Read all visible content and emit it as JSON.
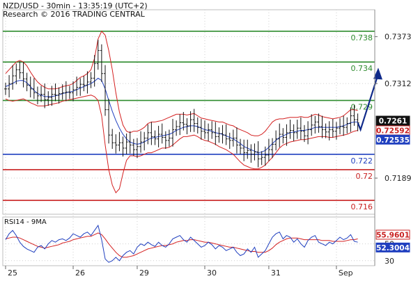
{
  "header": {
    "title": "NZD/USD - 30min - 13:35:19 (UTC+2)",
    "research": "Research © 2016 TRADING CENTRAL"
  },
  "chart_data": {
    "type": "line",
    "price_axis": {
      "ylim": [
        0.7142,
        0.7408
      ],
      "ticks": [
        {
          "value": 0.7373,
          "label": "0.7373"
        },
        {
          "value": 0.7312,
          "label": "0.7312"
        },
        {
          "value": 0.7189,
          "label": "0.7189"
        }
      ]
    },
    "x_axis": {
      "labels": [
        {
          "label": "25",
          "index": 0
        },
        {
          "label": "26",
          "index": 19
        },
        {
          "label": "29",
          "index": 37
        },
        {
          "label": "30",
          "index": 56
        },
        {
          "label": "31",
          "index": 74
        },
        {
          "label": "Sep",
          "index": 93
        }
      ],
      "count": 104
    },
    "levels": [
      {
        "value": 0.738,
        "label": "0.738",
        "color": "#2e8b2e"
      },
      {
        "value": 0.734,
        "label": "0.734",
        "color": "#2e8b2e"
      },
      {
        "value": 0.729,
        "label": "0.729",
        "color": "#2e8b2e"
      },
      {
        "value": 0.722,
        "label": "0.722",
        "color": "#1f3fbf"
      },
      {
        "value": 0.72,
        "label": "0.72",
        "color": "#c82020"
      },
      {
        "value": 0.716,
        "label": "0.716",
        "color": "#c82020"
      }
    ],
    "price_badges": [
      {
        "value": 0.7261,
        "label": "0.7261",
        "bg": "#111111",
        "fg": "#ffffff"
      },
      {
        "value": 0.72592,
        "label": "0.72592",
        "bg": "#ffffff",
        "fg": "#c82020",
        "border": "#c82020"
      },
      {
        "value": 0.72535,
        "label": "0.72535",
        "bg": "#1f3fbf",
        "fg": "#ffffff"
      }
    ],
    "forecast_arrow": {
      "from_index": 100,
      "from": 0.7252,
      "to_index": 104,
      "to": 0.7329,
      "color": "#102a8a"
    },
    "close": [
      0.7305,
      0.7312,
      0.7322,
      0.733,
      0.7326,
      0.7318,
      0.731,
      0.7305,
      0.73,
      0.7296,
      0.7298,
      0.7291,
      0.7294,
      0.7298,
      0.7297,
      0.7299,
      0.73,
      0.7301,
      0.73,
      0.7304,
      0.7307,
      0.7311,
      0.731,
      0.7314,
      0.7319,
      0.7338,
      0.7355,
      0.7325,
      0.7278,
      0.7245,
      0.7235,
      0.7232,
      0.7235,
      0.7228,
      0.7236,
      0.7232,
      0.7226,
      0.723,
      0.7236,
      0.7241,
      0.7248,
      0.7243,
      0.724,
      0.7246,
      0.7242,
      0.7238,
      0.7241,
      0.7252,
      0.7256,
      0.7261,
      0.7259,
      0.7257,
      0.7265,
      0.726,
      0.7255,
      0.725,
      0.7248,
      0.7252,
      0.7248,
      0.7243,
      0.7247,
      0.7245,
      0.724,
      0.7238,
      0.7241,
      0.7232,
      0.7228,
      0.7222,
      0.7225,
      0.722,
      0.7223,
      0.7214,
      0.7216,
      0.7219,
      0.7226,
      0.7233,
      0.724,
      0.7246,
      0.7242,
      0.7248,
      0.7251,
      0.7248,
      0.7254,
      0.725,
      0.7244,
      0.7252,
      0.7258,
      0.7262,
      0.7256,
      0.7252,
      0.7249,
      0.7252,
      0.725,
      0.7254,
      0.7256,
      0.7255,
      0.726,
      0.727,
      0.7265,
      0.7261
    ],
    "bb_upper": [
      0.7325,
      0.733,
      0.7335,
      0.734,
      0.7342,
      0.734,
      0.7335,
      0.7327,
      0.732,
      0.7314,
      0.731,
      0.7307,
      0.7305,
      0.7305,
      0.7305,
      0.7306,
      0.7308,
      0.7309,
      0.731,
      0.7312,
      0.7316,
      0.732,
      0.7322,
      0.7325,
      0.733,
      0.7345,
      0.737,
      0.738,
      0.7375,
      0.7355,
      0.733,
      0.73,
      0.7275,
      0.7258,
      0.725,
      0.7248,
      0.725,
      0.725,
      0.7252,
      0.7255,
      0.726,
      0.7262,
      0.7262,
      0.7263,
      0.7264,
      0.7266,
      0.7268,
      0.727,
      0.7272,
      0.7272,
      0.7272,
      0.7271,
      0.7272,
      0.7273,
      0.727,
      0.7267,
      0.7266,
      0.7265,
      0.7264,
      0.7263,
      0.7262,
      0.7262,
      0.726,
      0.7258,
      0.7257,
      0.7254,
      0.7252,
      0.725,
      0.7248,
      0.7245,
      0.7244,
      0.7244,
      0.7246,
      0.725,
      0.7256,
      0.7262,
      0.7265,
      0.7266,
      0.7266,
      0.7267,
      0.7268,
      0.7268,
      0.7268,
      0.7269,
      0.7268,
      0.7268,
      0.727,
      0.7272,
      0.7271,
      0.7269,
      0.7268,
      0.7267,
      0.7266,
      0.7267,
      0.7268,
      0.727,
      0.7274,
      0.7278,
      0.7278,
      0.7277
    ],
    "bb_lower": [
      0.7292,
      0.729,
      0.7289,
      0.729,
      0.7291,
      0.7292,
      0.729,
      0.7287,
      0.7285,
      0.7283,
      0.7283,
      0.7283,
      0.7284,
      0.7285,
      0.7286,
      0.7287,
      0.7289,
      0.729,
      0.7291,
      0.7292,
      0.7293,
      0.7294,
      0.7295,
      0.7296,
      0.7297,
      0.7295,
      0.729,
      0.727,
      0.7232,
      0.72,
      0.718,
      0.717,
      0.7175,
      0.7195,
      0.7212,
      0.7218,
      0.7218,
      0.7217,
      0.7218,
      0.722,
      0.7222,
      0.7222,
      0.7224,
      0.7226,
      0.7228,
      0.7228,
      0.7229,
      0.7232,
      0.7236,
      0.724,
      0.7243,
      0.7243,
      0.7244,
      0.7245,
      0.7243,
      0.724,
      0.7238,
      0.7237,
      0.7235,
      0.7233,
      0.723,
      0.7228,
      0.7226,
      0.7223,
      0.722,
      0.7215,
      0.721,
      0.7206,
      0.7204,
      0.7202,
      0.7201,
      0.7201,
      0.7203,
      0.7206,
      0.7211,
      0.7216,
      0.7222,
      0.7228,
      0.7232,
      0.7234,
      0.7236,
      0.7237,
      0.7238,
      0.7239,
      0.7239,
      0.724,
      0.7241,
      0.7242,
      0.7243,
      0.7243,
      0.7243,
      0.7242,
      0.7242,
      0.7243,
      0.7244,
      0.7245,
      0.7246,
      0.7248,
      0.725,
      0.7251
    ],
    "mid": [
      0.7308,
      0.731,
      0.7312,
      0.7315,
      0.7316,
      0.7316,
      0.7313,
      0.7308,
      0.7303,
      0.7299,
      0.7297,
      0.7295,
      0.7295,
      0.7295,
      0.7296,
      0.7297,
      0.7299,
      0.73,
      0.7301,
      0.7302,
      0.7304,
      0.7306,
      0.7308,
      0.731,
      0.7312,
      0.7315,
      0.7319,
      0.7316,
      0.7305,
      0.729,
      0.7276,
      0.7264,
      0.7254,
      0.7246,
      0.724,
      0.7236,
      0.7234,
      0.7233,
      0.7234,
      0.7236,
      0.7239,
      0.7241,
      0.7242,
      0.7243,
      0.7244,
      0.7245,
      0.7246,
      0.7248,
      0.7251,
      0.7253,
      0.7255,
      0.7256,
      0.7257,
      0.7257,
      0.7256,
      0.7254,
      0.7252,
      0.7251,
      0.725,
      0.7248,
      0.7247,
      0.7246,
      0.7244,
      0.7242,
      0.724,
      0.7237,
      0.7234,
      0.723,
      0.7228,
      0.7226,
      0.7224,
      0.7222,
      0.7223,
      0.7225,
      0.7229,
      0.7234,
      0.7238,
      0.7242,
      0.7244,
      0.7246,
      0.7248,
      0.7249,
      0.725,
      0.7251,
      0.7251,
      0.7252,
      0.7253,
      0.7255,
      0.7255,
      0.7255,
      0.7255,
      0.7255,
      0.7255,
      0.7255,
      0.7256,
      0.7257,
      0.7259,
      0.7261,
      0.7262,
      0.7262
    ],
    "rsi": {
      "label": "RSI14 - 9MA",
      "ylim": [
        24,
        82
      ],
      "ticks": [
        {
          "value": 50,
          "label": "50"
        },
        {
          "value": 30,
          "label": "30"
        }
      ],
      "badges": [
        {
          "value": 55.9601,
          "label": "55.9601",
          "bg": "#ffffff",
          "fg": "#c82020",
          "border": "#c82020"
        },
        {
          "value": 52.3004,
          "label": "52.3004",
          "bg": "#1f3fbf",
          "fg": "#ffffff"
        }
      ],
      "rsi": [
        55,
        62,
        66,
        60,
        52,
        47,
        44,
        42,
        40,
        46,
        48,
        44,
        50,
        54,
        52,
        55,
        56,
        54,
        57,
        62,
        60,
        58,
        62,
        64,
        60,
        66,
        72,
        55,
        32,
        28,
        30,
        34,
        30,
        36,
        40,
        42,
        38,
        46,
        50,
        48,
        52,
        49,
        47,
        52,
        48,
        46,
        50,
        56,
        58,
        60,
        55,
        52,
        58,
        54,
        50,
        46,
        48,
        52,
        49,
        44,
        48,
        46,
        42,
        44,
        46,
        40,
        36,
        38,
        44,
        40,
        46,
        34,
        38,
        42,
        50,
        58,
        62,
        64,
        56,
        60,
        58,
        52,
        56,
        50,
        46,
        54,
        58,
        60,
        52,
        50,
        48,
        52,
        50,
        54,
        58,
        55,
        57,
        61,
        53,
        52
      ],
      "ma": [
        56,
        57,
        58,
        58,
        57,
        55,
        53,
        51,
        49,
        47,
        46,
        45,
        46,
        47,
        48,
        49,
        51,
        52,
        53,
        55,
        56,
        57,
        58,
        59,
        59,
        61,
        63,
        61,
        56,
        50,
        45,
        40,
        36,
        34,
        34,
        35,
        36,
        38,
        40,
        42,
        44,
        45,
        46,
        47,
        48,
        48,
        49,
        50,
        52,
        53,
        54,
        54,
        55,
        55,
        54,
        53,
        52,
        52,
        51,
        50,
        49,
        48,
        47,
        46,
        46,
        45,
        44,
        43,
        42,
        41,
        41,
        40,
        40,
        40,
        42,
        45,
        49,
        52,
        54,
        56,
        57,
        57,
        57,
        56,
        55,
        55,
        55,
        55,
        55,
        54,
        54,
        54,
        53,
        53,
        53,
        53,
        54,
        55,
        55,
        56
      ]
    }
  }
}
